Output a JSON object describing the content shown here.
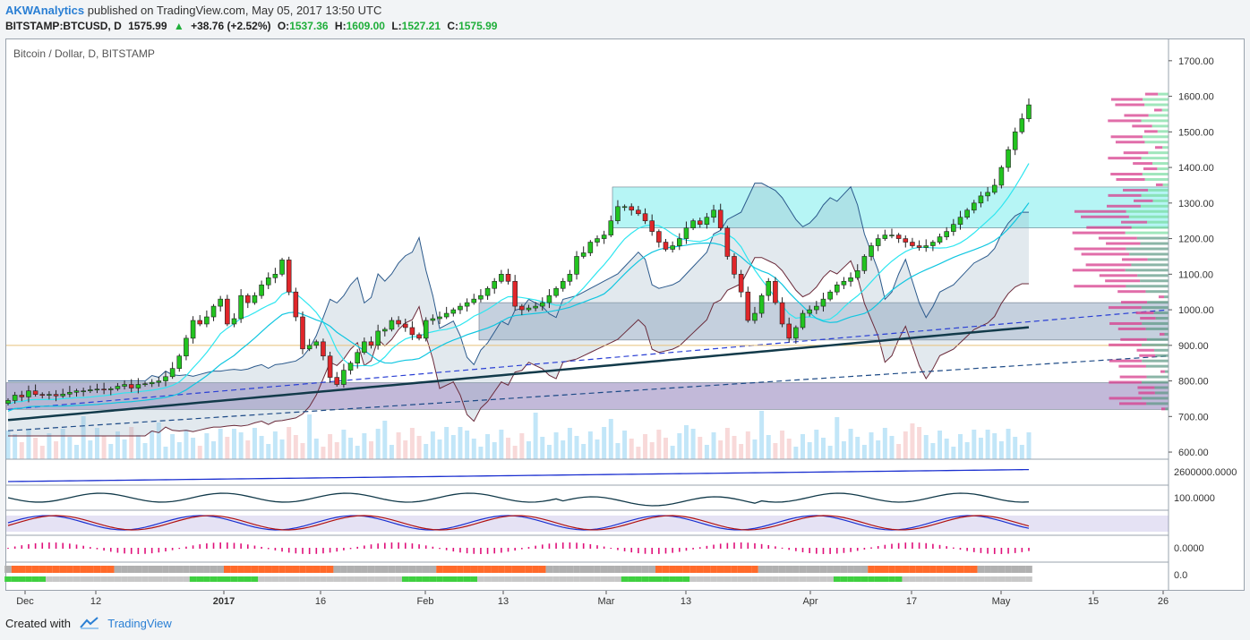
{
  "header": {
    "author": "AKWAnalytics",
    "published_text": "published on TradingView.com, May 05, 2017 13:50 UTC",
    "symbol": "BITSTAMP:BTCUSD, D",
    "last": "1575.99",
    "change": "+38.76 (+2.52%)",
    "o_label": "O:",
    "o_value": "1537.36",
    "h_label": "H:",
    "h_value": "1609.00",
    "l_label": "L:",
    "l_value": "1527.21",
    "c_label": "C:",
    "c_value": "1575.99"
  },
  "legend": {
    "title": "Bitcoin / Dollar, D, BITSTAMP"
  },
  "footer": {
    "created_with": "Created with",
    "brand": "TradingView"
  },
  "colors": {
    "up": "#22c41f",
    "down": "#e0262a",
    "accent": "#2a7fd4"
  },
  "chart_data": {
    "type": "candlestick",
    "title": "Bitcoin / Dollar, D, BITSTAMP",
    "ylim": [
      580,
      1760
    ],
    "y_ticks": [
      "1700.00",
      "1600.00",
      "1500.00",
      "1400.00",
      "1300.00",
      "1200.00",
      "1100.00",
      "1000.00",
      "900.00",
      "800.00",
      "700.00",
      "600.00"
    ],
    "x_ticks": [
      "Dec",
      "12",
      "2017",
      "16",
      "Feb",
      "13",
      "Mar",
      "13",
      "Apr",
      "17",
      "May",
      "15",
      "26"
    ],
    "close": [
      745,
      760,
      755,
      772,
      762,
      760,
      762,
      758,
      763,
      768,
      772,
      772,
      775,
      777,
      775,
      778,
      785,
      790,
      780,
      790,
      792,
      796,
      800,
      812,
      835,
      870,
      920,
      970,
      960,
      980,
      1010,
      1030,
      960,
      975,
      1040,
      1020,
      1040,
      1070,
      1090,
      1100,
      1140,
      1050,
      980,
      890,
      900,
      910,
      870,
      810,
      790,
      830,
      850,
      880,
      910,
      900,
      940,
      945,
      970,
      960,
      950,
      930,
      920,
      970,
      975,
      980,
      990,
      1000,
      1010,
      1020,
      1030,
      1040,
      1060,
      1080,
      1100,
      1080,
      1010,
      1000,
      1005,
      1010,
      1020,
      1040,
      1060,
      1080,
      1100,
      1150,
      1160,
      1190,
      1200,
      1210,
      1250,
      1290,
      1290,
      1280,
      1270,
      1250,
      1220,
      1190,
      1170,
      1180,
      1200,
      1230,
      1250,
      1240,
      1260,
      1280,
      1230,
      1150,
      1100,
      1050,
      970,
      990,
      1040,
      1080,
      1020,
      960,
      920,
      950,
      990,
      1000,
      1010,
      1030,
      1050,
      1070,
      1080,
      1090,
      1110,
      1150,
      1180,
      1200,
      1210,
      1210,
      1200,
      1190,
      1180,
      1175,
      1180,
      1190,
      1205,
      1220,
      1240,
      1260,
      1280,
      1300,
      1320,
      1330,
      1350,
      1400,
      1450,
      1500,
      1537,
      1576
    ],
    "support_zones": [
      [
        1230,
        1345
      ],
      [
        915,
        1020
      ],
      [
        720,
        795
      ]
    ],
    "annotation_lines": [
      {
        "type": "dashed_trend",
        "from": [
          0,
          720
        ],
        "to": [
          155,
          1000
        ]
      },
      {
        "type": "dashed_trend",
        "from": [
          0,
          660
        ],
        "to": [
          155,
          870
        ]
      },
      {
        "type": "horizontal",
        "y": 900
      }
    ]
  }
}
